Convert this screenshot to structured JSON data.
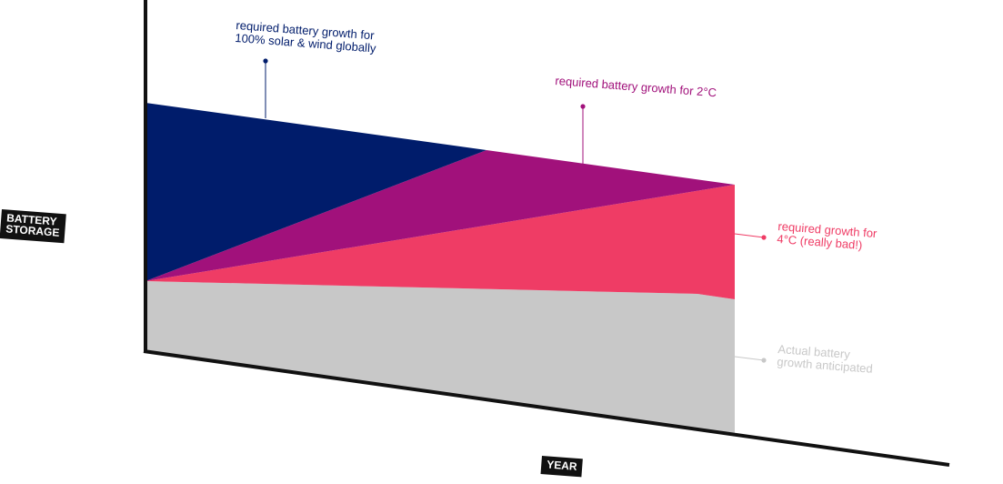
{
  "chart_data": {
    "type": "area",
    "xlabel": "YEAR",
    "ylabel_lines": [
      "BATTERY",
      "STORAGE"
    ],
    "series": [
      {
        "name_lines": [
          "Actual battery",
          "growth anticipated"
        ],
        "color": "#c8c8c8",
        "key": "actual"
      },
      {
        "name_lines": [
          "required growth for",
          "4°C (really bad!)"
        ],
        "color": "#ef3c65",
        "key": "four_c"
      },
      {
        "name_lines": [
          "required battery growth for 2°C"
        ],
        "color": "#a1117b",
        "key": "two_c"
      },
      {
        "name_lines": [
          "required battery growth for",
          "100% solar & wind globally"
        ],
        "color": "#001c6b",
        "key": "full"
      }
    ]
  }
}
